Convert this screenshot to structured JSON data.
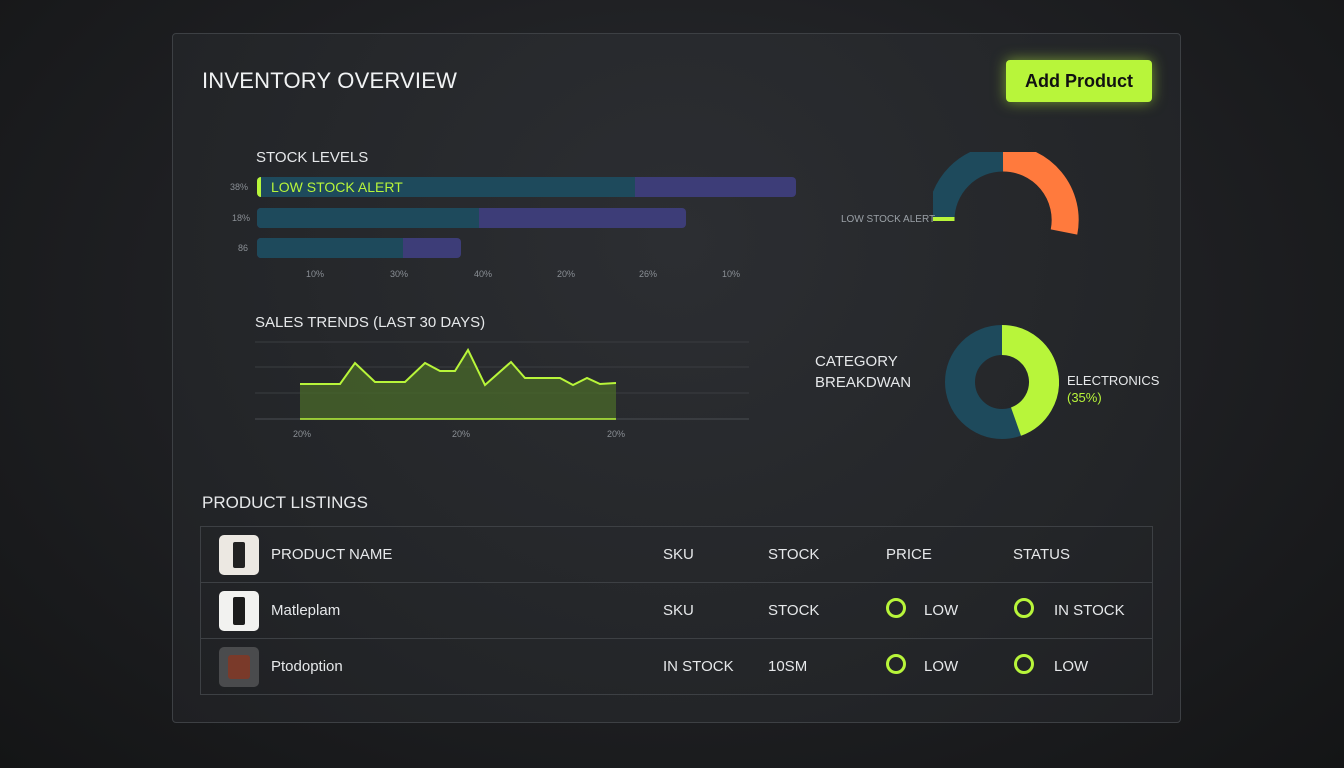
{
  "header": {
    "title": "INVENTORY OVERVIEW",
    "add_button": "Add Product"
  },
  "stock_levels": {
    "title": "STOCK LEVELS",
    "bar_alert_label": "LOW STOCK ALERT",
    "row_labels": [
      "38%",
      "18%",
      "86"
    ],
    "x_ticks": [
      "10%",
      "30%",
      "40%",
      "20%",
      "26%",
      "10%"
    ]
  },
  "gauge": {
    "label": "LOW STOCK ALERT"
  },
  "sales": {
    "title": "SALES TRENDS (LAST 30 DAYS)",
    "x_ticks": [
      "20%",
      "20%",
      "20%"
    ]
  },
  "category": {
    "title_line1": "CATEGORY",
    "title_line2": "BREAKDWAN",
    "legend_name": "ELECTRONICS",
    "legend_pct": "(35%)"
  },
  "listings": {
    "title": "PRODUCT LISTINGS",
    "columns": [
      "PRODUCT NAME",
      "SKU",
      "STOCK",
      "PRICE",
      "STATUS"
    ],
    "rows": [
      {
        "name": "Matleplam",
        "sku": "SKU",
        "stock": "STOCK",
        "price": "LOW",
        "status": "IN STOCK"
      },
      {
        "name": "Ptodoption",
        "sku": "IN STOCK",
        "stock": "10SM",
        "price": "LOW",
        "status": "LOW"
      }
    ]
  },
  "colors": {
    "accent": "#b8f53a",
    "teal": "#1e4a5c",
    "purple": "#3d3d78",
    "orange": "#ff7a3d"
  }
}
